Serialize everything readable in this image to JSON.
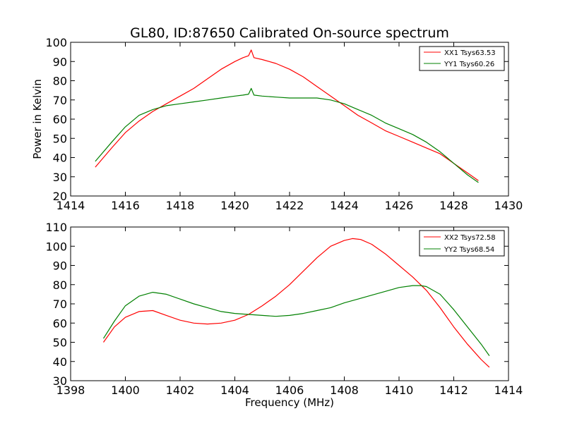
{
  "chart_data": [
    {
      "type": "line",
      "title": "GL80, ID:87650 Calibrated On-source spectrum",
      "xlabel": "",
      "ylabel": "Power in Kelvin",
      "xlim": [
        1414,
        1430
      ],
      "ylim": [
        20,
        100
      ],
      "xticks": [
        "1414",
        "1416",
        "1418",
        "1420",
        "1422",
        "1424",
        "1426",
        "1428",
        "1430"
      ],
      "yticks": [
        "20",
        "30",
        "40",
        "50",
        "60",
        "70",
        "80",
        "90",
        "100"
      ],
      "legend_position": "top-right",
      "series": [
        {
          "name": "XX1 Tsys63.53",
          "color": "#ff0000",
          "x": [
            1414.9,
            1415.5,
            1416.0,
            1416.5,
            1417.0,
            1417.5,
            1418.0,
            1418.5,
            1419.0,
            1419.5,
            1420.0,
            1420.3,
            1420.5,
            1420.6,
            1420.7,
            1421.0,
            1421.5,
            1422.0,
            1422.5,
            1423.0,
            1423.5,
            1424.0,
            1424.5,
            1425.0,
            1425.5,
            1426.0,
            1426.5,
            1427.0,
            1427.5,
            1428.0,
            1428.5,
            1428.9
          ],
          "y": [
            35,
            45,
            53,
            59,
            64,
            68,
            72,
            76,
            81,
            86,
            90,
            92,
            93,
            96,
            92,
            91,
            89,
            86,
            82,
            77,
            72,
            67,
            62,
            58,
            54,
            51,
            48,
            45,
            42,
            37,
            32,
            28
          ]
        },
        {
          "name": "YY1 Tsys60.26",
          "color": "#008000",
          "x": [
            1414.9,
            1415.5,
            1416.0,
            1416.5,
            1417.0,
            1417.5,
            1418.0,
            1418.5,
            1419.0,
            1419.5,
            1420.0,
            1420.3,
            1420.5,
            1420.6,
            1420.7,
            1421.0,
            1421.5,
            1422.0,
            1422.5,
            1423.0,
            1423.5,
            1424.0,
            1424.5,
            1425.0,
            1425.5,
            1426.0,
            1426.5,
            1427.0,
            1427.5,
            1428.0,
            1428.5,
            1428.9
          ],
          "y": [
            38,
            48,
            56,
            62,
            65,
            67,
            68,
            69,
            70,
            71,
            72,
            72.5,
            73,
            76,
            72.5,
            72,
            71.5,
            71,
            71,
            71,
            70,
            68,
            65,
            62,
            58,
            55,
            52,
            48,
            43,
            37,
            31,
            27
          ]
        }
      ]
    },
    {
      "type": "line",
      "title": "",
      "xlabel": "Frequency (MHz)",
      "ylabel": "",
      "xlim": [
        1398,
        1414
      ],
      "ylim": [
        30,
        110
      ],
      "xticks": [
        "1398",
        "1400",
        "1402",
        "1404",
        "1406",
        "1408",
        "1410",
        "1412",
        "1414"
      ],
      "yticks": [
        "30",
        "40",
        "50",
        "60",
        "70",
        "80",
        "90",
        "100",
        "110"
      ],
      "legend_position": "top-right",
      "series": [
        {
          "name": "XX2 Tsys72.58",
          "color": "#ff0000",
          "x": [
            1399.2,
            1399.6,
            1400.0,
            1400.5,
            1401.0,
            1401.5,
            1402.0,
            1402.5,
            1403.0,
            1403.5,
            1404.0,
            1404.5,
            1405.0,
            1405.5,
            1406.0,
            1406.5,
            1407.0,
            1407.5,
            1408.0,
            1408.3,
            1408.6,
            1409.0,
            1409.5,
            1410.0,
            1410.5,
            1411.0,
            1411.5,
            1412.0,
            1412.5,
            1413.0,
            1413.3
          ],
          "y": [
            50,
            58,
            63,
            66,
            66.5,
            64,
            61.5,
            60,
            59.5,
            60,
            61.5,
            64.5,
            69,
            74,
            80,
            87,
            94,
            100,
            103,
            104,
            103.5,
            101,
            96,
            90,
            84,
            77,
            68,
            58,
            49,
            41,
            37
          ]
        },
        {
          "name": "YY2 Tsys68.54",
          "color": "#008000",
          "x": [
            1399.2,
            1399.6,
            1400.0,
            1400.5,
            1401.0,
            1401.5,
            1402.0,
            1402.5,
            1403.0,
            1403.5,
            1404.0,
            1404.5,
            1405.0,
            1405.5,
            1406.0,
            1406.5,
            1407.0,
            1407.5,
            1408.0,
            1408.5,
            1409.0,
            1409.5,
            1410.0,
            1410.5,
            1410.8,
            1411.0,
            1411.5,
            1412.0,
            1412.5,
            1413.0,
            1413.3
          ],
          "y": [
            52,
            61,
            69,
            74,
            76,
            75,
            72.5,
            70,
            68,
            66,
            65,
            64.5,
            64,
            63.5,
            64,
            65,
            66.5,
            68,
            70.5,
            72.5,
            74.5,
            76.5,
            78.5,
            79.5,
            79.5,
            79,
            75,
            67,
            58,
            49,
            43
          ]
        }
      ]
    }
  ]
}
